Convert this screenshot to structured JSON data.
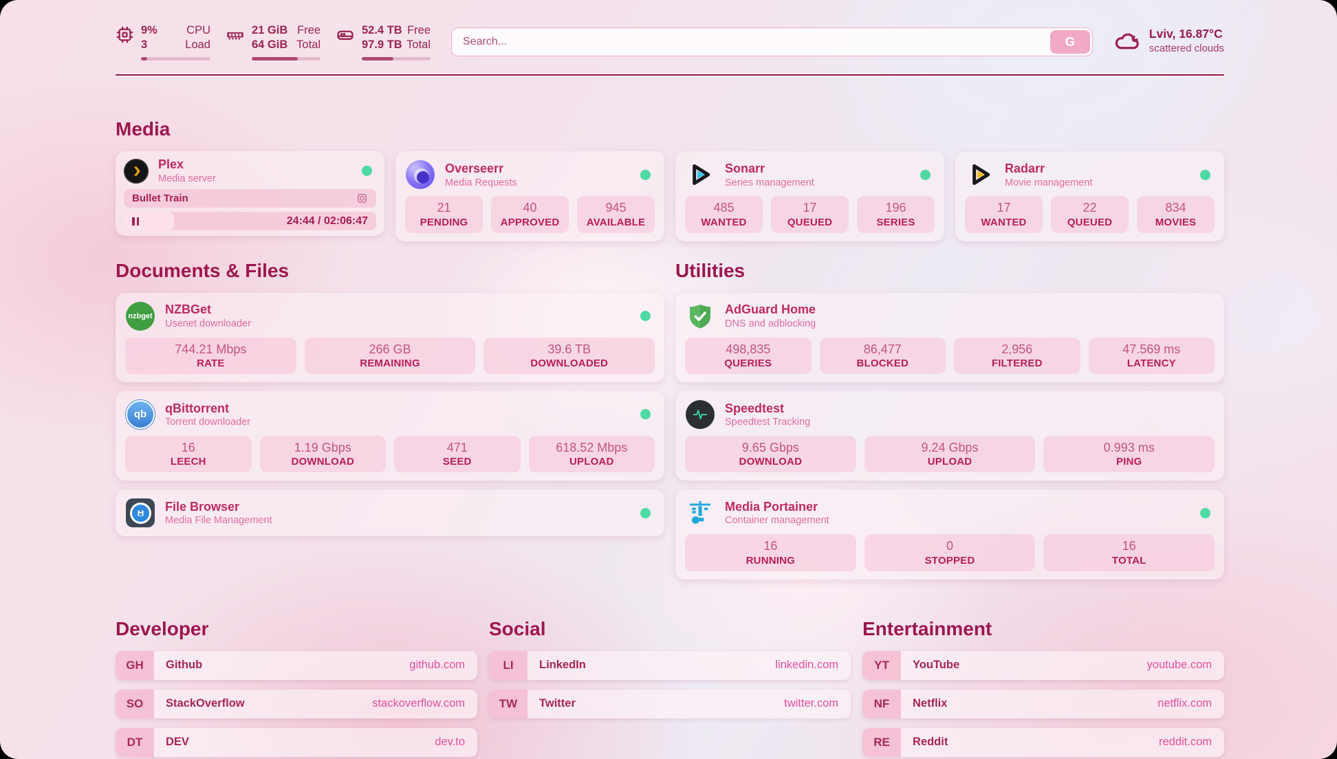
{
  "colors": {
    "accent": "#9d164f",
    "status_online": "#4fd9a4",
    "link_url": "#e2519c",
    "search_button_bg": "#f2a9c7"
  },
  "header": {
    "cpu": {
      "icon": "cpu-chip",
      "value": "9%",
      "cores": "3",
      "label_top": "CPU",
      "label_bottom": "Load",
      "progress": 9
    },
    "memory": {
      "icon": "ram-stick",
      "free": "21 GiB",
      "total": "64 GiB",
      "label_top": "Free",
      "label_bottom": "Total",
      "progress": 67
    },
    "disk": {
      "icon": "hard-drive",
      "free": "52.4 TB",
      "total": "97.9 TB",
      "label_top": "Free",
      "label_bottom": "Total",
      "progress": 46
    },
    "search": {
      "placeholder": "Search...",
      "button_label": "G"
    },
    "weather": {
      "icon": "cloud",
      "location_temp": "Lviv, 16.87°C",
      "condition": "scattered clouds"
    }
  },
  "media": {
    "heading": "Media",
    "plex": {
      "name": "Plex",
      "description": "Media server",
      "status": "online",
      "now_playing": "Bullet Train",
      "time_display": "24:44 / 02:06:47",
      "progress_percent": 20
    },
    "overseerr": {
      "name": "Overseerr",
      "description": "Media Requests",
      "status": "online",
      "stats": [
        {
          "value": "21",
          "label": "PENDING"
        },
        {
          "value": "40",
          "label": "APPROVED"
        },
        {
          "value": "945",
          "label": "AVAILABLE"
        }
      ]
    },
    "sonarr": {
      "name": "Sonarr",
      "description": "Series management",
      "status": "online",
      "stats": [
        {
          "value": "485",
          "label": "WANTED"
        },
        {
          "value": "17",
          "label": "QUEUED"
        },
        {
          "value": "196",
          "label": "SERIES"
        }
      ]
    },
    "radarr": {
      "name": "Radarr",
      "description": "Movie management",
      "status": "online",
      "stats": [
        {
          "value": "17",
          "label": "WANTED"
        },
        {
          "value": "22",
          "label": "QUEUED"
        },
        {
          "value": "834",
          "label": "MOVIES"
        }
      ]
    }
  },
  "documents": {
    "heading": "Documents & Files",
    "nzbget": {
      "name": "NZBGet",
      "description": "Usenet downloader",
      "status": "online",
      "stats": [
        {
          "value": "744.21 Mbps",
          "label": "RATE"
        },
        {
          "value": "266 GB",
          "label": "REMAINING"
        },
        {
          "value": "39.6 TB",
          "label": "DOWNLOADED"
        }
      ]
    },
    "qbittorrent": {
      "name": "qBittorrent",
      "description": "Torrent downloader",
      "status": "online",
      "stats": [
        {
          "value": "16",
          "label": "LEECH"
        },
        {
          "value": "1.19 Gbps",
          "label": "DOWNLOAD"
        },
        {
          "value": "471",
          "label": "SEED"
        },
        {
          "value": "618.52 Mbps",
          "label": "UPLOAD"
        }
      ]
    },
    "filebrowser": {
      "name": "File Browser",
      "description": "Media File Management",
      "status": "online"
    }
  },
  "utilities": {
    "heading": "Utilities",
    "adguard": {
      "name": "AdGuard Home",
      "description": "DNS and adblocking",
      "stats": [
        {
          "value": "498,835",
          "label": "QUERIES"
        },
        {
          "value": "86,477",
          "label": "BLOCKED"
        },
        {
          "value": "2,956",
          "label": "FILTERED"
        },
        {
          "value": "47.569 ms",
          "label": "LATENCY"
        }
      ]
    },
    "speedtest": {
      "name": "Speedtest",
      "description": "Speedtest Tracking",
      "stats": [
        {
          "value": "9.65 Gbps",
          "label": "DOWNLOAD"
        },
        {
          "value": "9.24 Gbps",
          "label": "UPLOAD"
        },
        {
          "value": "0.993 ms",
          "label": "PING"
        }
      ]
    },
    "portainer": {
      "name": "Media Portainer",
      "description": "Container management",
      "status": "online",
      "stats": [
        {
          "value": "16",
          "label": "RUNNING"
        },
        {
          "value": "0",
          "label": "STOPPED"
        },
        {
          "value": "16",
          "label": "TOTAL"
        }
      ]
    }
  },
  "link_sections": {
    "developer": {
      "heading": "Developer",
      "items": [
        {
          "abbr": "GH",
          "name": "Github",
          "url": "github.com"
        },
        {
          "abbr": "SO",
          "name": "StackOverflow",
          "url": "stackoverflow.com"
        },
        {
          "abbr": "DT",
          "name": "DEV",
          "url": "dev.to"
        }
      ]
    },
    "social": {
      "heading": "Social",
      "items": [
        {
          "abbr": "LI",
          "name": "LinkedIn",
          "url": "linkedin.com"
        },
        {
          "abbr": "TW",
          "name": "Twitter",
          "url": "twitter.com"
        }
      ]
    },
    "entertainment": {
      "heading": "Entertainment",
      "items": [
        {
          "abbr": "YT",
          "name": "YouTube",
          "url": "youtube.com"
        },
        {
          "abbr": "NF",
          "name": "Netflix",
          "url": "netflix.com"
        },
        {
          "abbr": "RE",
          "name": "Reddit",
          "url": "reddit.com"
        }
      ]
    }
  }
}
